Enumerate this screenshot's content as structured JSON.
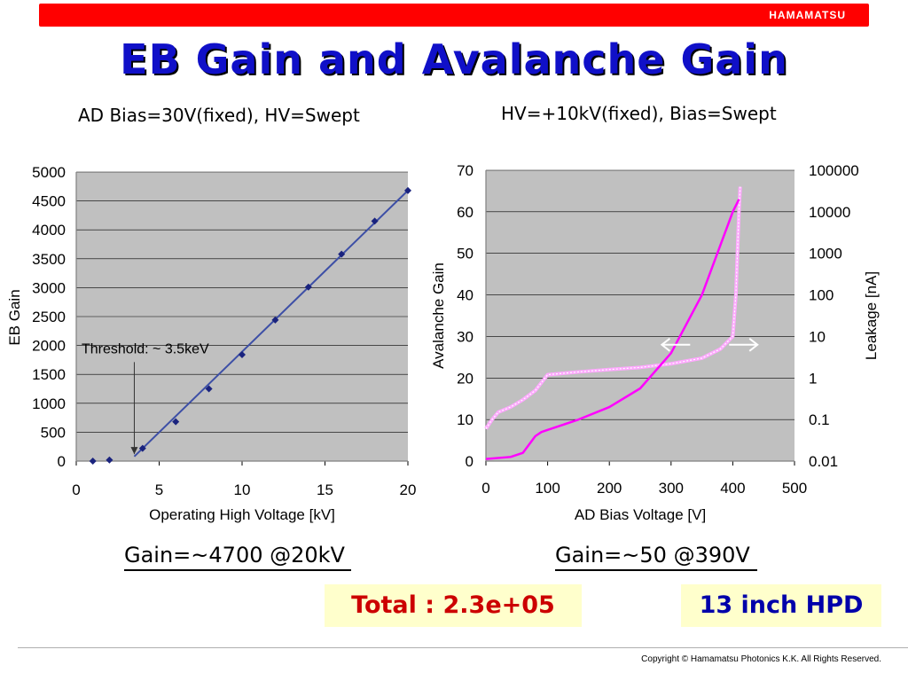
{
  "header": {
    "brand": "HAMAMATSU",
    "brand_color": "#ff0000"
  },
  "slide": {
    "title": "EB Gain and Avalanche Gain",
    "title_color": "#1010c8"
  },
  "left_panel": {
    "subtitle": "AD Bias=30V(fixed), HV=Swept",
    "gain_note": "Gain=~4700 @20kV"
  },
  "right_panel": {
    "subtitle": "HV=+10kV(fixed), Bias=Swept",
    "gain_note": "Gain=~50 @390V"
  },
  "badges": {
    "total": {
      "text": "Total : 2.3e+05",
      "color": "#cc0000"
    },
    "hpd": {
      "text": "13 inch HPD",
      "color": "#0000aa"
    }
  },
  "footer": {
    "copyright": "Copyright © Hamamatsu Photonics K.K.   All Rights Reserved."
  },
  "chart_data": [
    {
      "type": "scatter",
      "xlabel": "Operating High Voltage [kV]",
      "ylabel": "EB Gain",
      "xlim": [
        0,
        20
      ],
      "ylim": [
        0,
        5000
      ],
      "xticks": [
        0,
        5,
        10,
        15,
        20
      ],
      "yticks": [
        0,
        500,
        1000,
        1500,
        2000,
        2500,
        3000,
        3500,
        4000,
        4500,
        5000
      ],
      "grid": true,
      "background": "#c0c0c0",
      "series": [
        {
          "x": [
            1,
            2,
            4,
            6,
            8,
            10,
            12,
            14,
            16,
            18,
            20
          ],
          "y": [
            0,
            20,
            220,
            680,
            1250,
            1840,
            2440,
            3010,
            3580,
            4150,
            4680
          ],
          "color": "#1a237e"
        }
      ],
      "trendline": {
        "x": [
          3.5,
          20
        ],
        "y": [
          80,
          4680
        ],
        "color": "#3d4fa6"
      },
      "annotation": {
        "text": "Threshold: ~ 3.5keV",
        "arrow_x": 3.5,
        "arrow_from_y": 2050,
        "arrow_to_y": 120
      }
    },
    {
      "type": "line",
      "xlabel": "AD Bias Voltage [V]",
      "ylabel": "Avalanche Gain",
      "y2label": "Leakage [nA]",
      "xlim": [
        0,
        500
      ],
      "ylim": [
        0,
        70
      ],
      "y2lim_log": [
        0.01,
        100000
      ],
      "xticks": [
        0,
        100,
        200,
        300,
        400,
        500
      ],
      "yticks": [
        0,
        10,
        20,
        30,
        40,
        50,
        60,
        70
      ],
      "y2ticks": [
        "0.01",
        "0.1",
        "1",
        "10",
        "100",
        "1000",
        "10000",
        "100000"
      ],
      "grid": true,
      "background": "#c0c0c0",
      "series": [
        {
          "axis": "left",
          "color": "#ff00ff",
          "x": [
            0,
            40,
            60,
            70,
            80,
            90,
            100,
            120,
            150,
            200,
            250,
            300,
            350,
            380,
            400,
            410
          ],
          "y": [
            0.5,
            1,
            2,
            4,
            6,
            7,
            7.5,
            8.5,
            10,
            13,
            17.5,
            26,
            40,
            52,
            60,
            63
          ]
        },
        {
          "axis": "right",
          "color": "#ffa8ff",
          "x": [
            0,
            10,
            20,
            40,
            60,
            80,
            100,
            150,
            200,
            250,
            300,
            350,
            380,
            400,
            405,
            410,
            412
          ],
          "y": [
            0.06,
            0.1,
            0.15,
            0.2,
            0.3,
            0.5,
            1.2,
            1.4,
            1.6,
            1.8,
            2.2,
            3.0,
            5,
            10,
            100,
            10000,
            40000
          ]
        }
      ],
      "annotation": {
        "type": "double-arrow",
        "x_from": 285,
        "x_to": 440,
        "y": 28
      }
    }
  ]
}
